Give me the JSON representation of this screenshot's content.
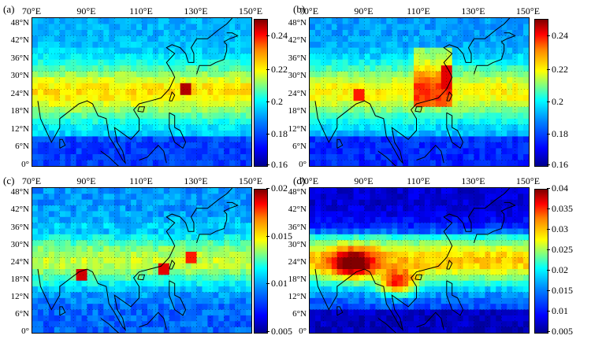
{
  "colors": {
    "ocean_deep": "#0f1fb0",
    "coast": "#000000"
  },
  "lon_labels": [
    "70°E",
    "90°E",
    "110°E",
    "130°E",
    "150°E"
  ],
  "lat_labels": [
    "48°N",
    "42°N",
    "36°N",
    "30°N",
    "24°N",
    "18°N",
    "12°N",
    "6°N",
    "0°"
  ],
  "panels": [
    {
      "label": "(a)",
      "colorbar": [
        "0.24",
        "0.22",
        "0.2",
        "0.18",
        "0.16"
      ]
    },
    {
      "label": "(b)",
      "colorbar": [
        "0.24",
        "0.22",
        "0.2",
        "0.18",
        "0.16"
      ]
    },
    {
      "label": "(c)",
      "colorbar": [
        "0.02",
        "0.015",
        "0.01",
        "0.005"
      ]
    },
    {
      "label": "(d)",
      "colorbar": [
        "0.04",
        "0.035",
        "0.03",
        "0.025",
        "0.02",
        "0.015",
        "0.01",
        "0.005"
      ]
    }
  ]
}
